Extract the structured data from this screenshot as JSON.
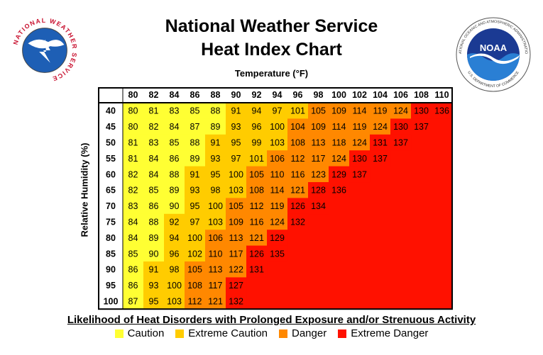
{
  "title_line1": "National Weather Service",
  "title_line2": "Heat Index Chart",
  "nws_logo_text": "NATIONAL WEATHER SERVICE",
  "noaa_logo": {
    "acronym": "NOAA",
    "ring_text": "NATIONAL OCEANIC AND ATMOSPHERIC ADMINISTRATION",
    "bottom_text": "U.S. DEPARTMENT OF COMMERCE"
  },
  "legend_title": "Likelihood of Heat Disorders with Prolonged Exposure and/or Strenuous Activity",
  "chart_data": {
    "type": "heatmap",
    "xlabel": "Temperature (°F)",
    "ylabel": "Relative Humidity (%)",
    "temperatures": [
      80,
      82,
      84,
      86,
      88,
      90,
      92,
      94,
      96,
      98,
      100,
      102,
      104,
      106,
      108,
      110
    ],
    "humidities": [
      40,
      45,
      50,
      55,
      60,
      65,
      70,
      75,
      80,
      85,
      90,
      95,
      100
    ],
    "values": [
      [
        80,
        81,
        83,
        85,
        88,
        91,
        94,
        97,
        101,
        105,
        109,
        114,
        119,
        124,
        130,
        136
      ],
      [
        80,
        82,
        84,
        87,
        89,
        93,
        96,
        100,
        104,
        109,
        114,
        119,
        124,
        130,
        137
      ],
      [
        81,
        83,
        85,
        88,
        91,
        95,
        99,
        103,
        108,
        113,
        118,
        124,
        131,
        137
      ],
      [
        81,
        84,
        86,
        89,
        93,
        97,
        101,
        106,
        112,
        117,
        124,
        130,
        137
      ],
      [
        82,
        84,
        88,
        91,
        95,
        100,
        105,
        110,
        116,
        123,
        129,
        137
      ],
      [
        82,
        85,
        89,
        93,
        98,
        103,
        108,
        114,
        121,
        128,
        136
      ],
      [
        83,
        86,
        90,
        95,
        100,
        105,
        112,
        119,
        126,
        134
      ],
      [
        84,
        88,
        92,
        97,
        103,
        109,
        116,
        124,
        132
      ],
      [
        84,
        89,
        94,
        100,
        106,
        113,
        121,
        129
      ],
      [
        85,
        90,
        96,
        102,
        110,
        117,
        126,
        135
      ],
      [
        86,
        91,
        98,
        105,
        113,
        122,
        131
      ],
      [
        86,
        93,
        100,
        108,
        117,
        127
      ],
      [
        87,
        95,
        103,
        112,
        121,
        132
      ]
    ],
    "categories": [
      {
        "name": "Caution",
        "color": "#ffff33"
      },
      {
        "name": "Extreme Caution",
        "color": "#ffcc00"
      },
      {
        "name": "Danger",
        "color": "#ff8800"
      },
      {
        "name": "Extreme Danger",
        "color": "#ff1100"
      }
    ]
  }
}
